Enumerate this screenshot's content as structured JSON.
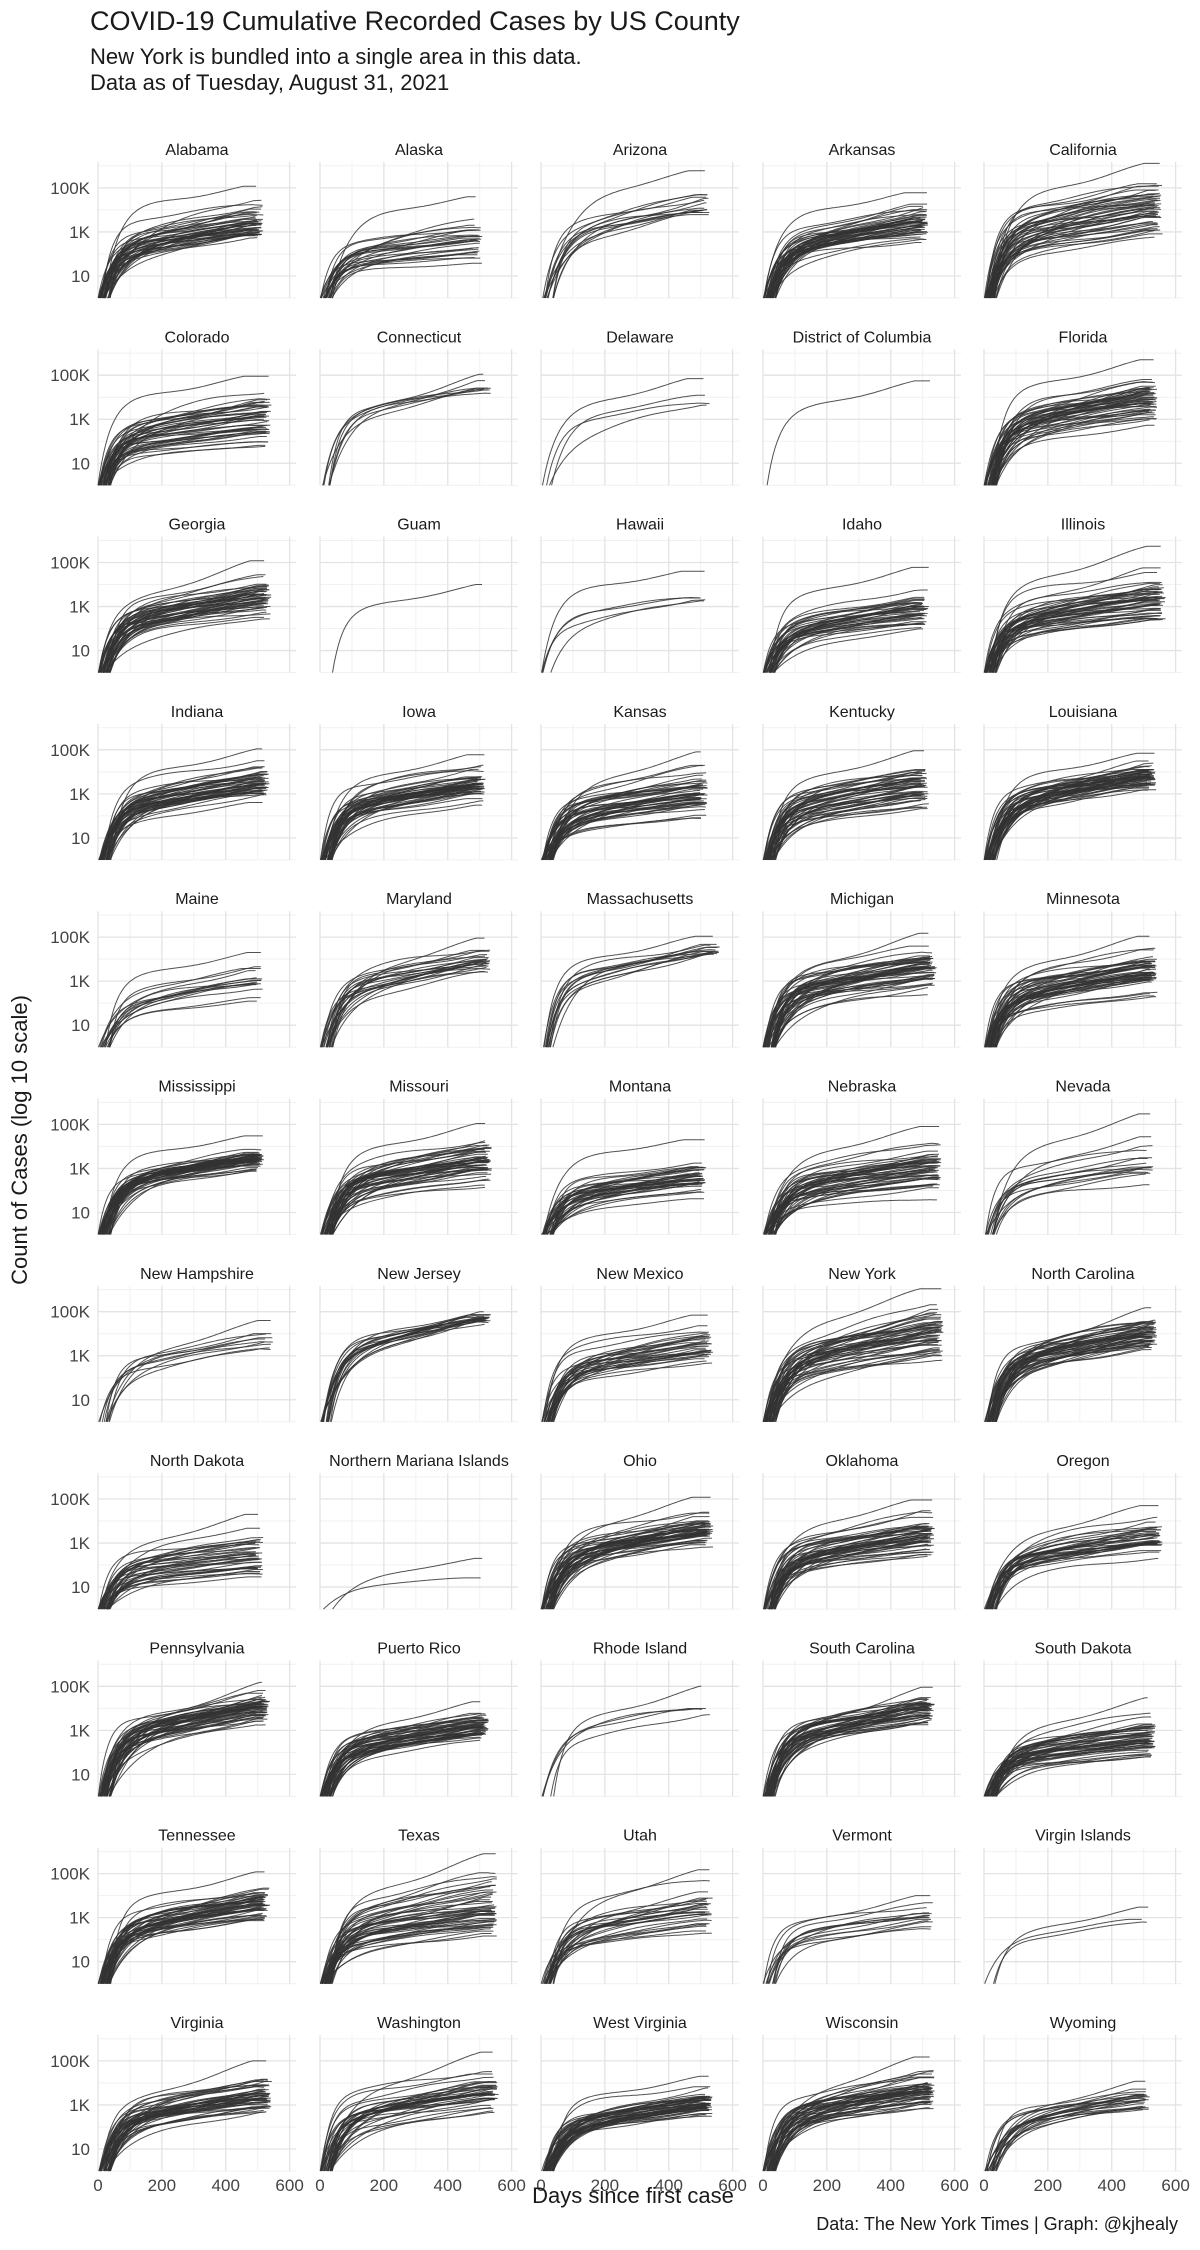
{
  "header": {
    "title": "COVID-19 Cumulative Recorded Cases by US County",
    "subtitle_line1": "New York is bundled into a single area in this data.",
    "subtitle_line2": "Data as of Tuesday, August 31, 2021"
  },
  "footer": {
    "caption": "Data: The New York Times | Graph: @kjhealy"
  },
  "chart_data": {
    "type": "line",
    "title": "COVID-19 Cumulative Recorded Cases by US County",
    "xlabel": "Days since first case",
    "ylabel": "Count of Cases (log 10 scale)",
    "xscale": "linear",
    "yscale": "log10",
    "xlim": [
      0,
      620
    ],
    "ylim": [
      1,
      1500000
    ],
    "xticks": [
      0,
      200,
      400,
      600
    ],
    "xtick_labels": [
      "0",
      "200",
      "400",
      "600"
    ],
    "yticks": [
      10,
      1000,
      100000
    ],
    "ytick_labels": [
      "10",
      "1K",
      "100K"
    ],
    "grid": true,
    "legend": "none",
    "line_color": "#333333",
    "facets": [
      {
        "name": "Alabama",
        "n": 48,
        "max_days": 520,
        "top": 120000,
        "mid": 3000
      },
      {
        "name": "Alaska",
        "n": 28,
        "max_days": 510,
        "top": 40000,
        "mid": 500
      },
      {
        "name": "Arizona",
        "n": 15,
        "max_days": 530,
        "top": 600000,
        "mid": 20000
      },
      {
        "name": "Arkansas",
        "n": 48,
        "max_days": 520,
        "top": 60000,
        "mid": 2500
      },
      {
        "name": "California",
        "n": 50,
        "max_days": 560,
        "top": 1300000,
        "mid": 10000
      },
      {
        "name": "Colorado",
        "n": 48,
        "max_days": 545,
        "top": 90000,
        "mid": 800
      },
      {
        "name": "Connecticut",
        "n": 8,
        "max_days": 540,
        "top": 110000,
        "mid": 20000
      },
      {
        "name": "Delaware",
        "n": 4,
        "max_days": 530,
        "top": 70000,
        "mid": 4000
      },
      {
        "name": "District of Columbia",
        "n": 1,
        "max_days": 540,
        "top": 55000,
        "mid": 55000
      },
      {
        "name": "Florida",
        "n": 50,
        "max_days": 545,
        "top": 500000,
        "mid": 8000
      },
      {
        "name": "Georgia",
        "n": 50,
        "max_days": 545,
        "top": 120000,
        "mid": 3000
      },
      {
        "name": "Guam",
        "n": 1,
        "max_days": 525,
        "top": 10000,
        "mid": 10000
      },
      {
        "name": "Hawaii",
        "n": 5,
        "max_days": 520,
        "top": 40000,
        "mid": 1500
      },
      {
        "name": "Idaho",
        "n": 40,
        "max_days": 520,
        "top": 60000,
        "mid": 1000
      },
      {
        "name": "Illinois",
        "n": 50,
        "max_days": 570,
        "top": 550000,
        "mid": 2500
      },
      {
        "name": "Indiana",
        "n": 50,
        "max_days": 540,
        "top": 110000,
        "mid": 4000
      },
      {
        "name": "Iowa",
        "n": 50,
        "max_days": 520,
        "top": 60000,
        "mid": 2500
      },
      {
        "name": "Kansas",
        "n": 50,
        "max_days": 525,
        "top": 80000,
        "mid": 1000
      },
      {
        "name": "Kentucky",
        "n": 50,
        "max_days": 520,
        "top": 90000,
        "mid": 2000
      },
      {
        "name": "Louisiana",
        "n": 50,
        "max_days": 540,
        "top": 70000,
        "mid": 5000
      },
      {
        "name": "Maine",
        "n": 16,
        "max_days": 520,
        "top": 20000,
        "mid": 1000
      },
      {
        "name": "Maryland",
        "n": 24,
        "max_days": 540,
        "top": 90000,
        "mid": 8000
      },
      {
        "name": "Massachusetts",
        "n": 14,
        "max_days": 560,
        "top": 110000,
        "mid": 25000
      },
      {
        "name": "Michigan",
        "n": 50,
        "max_days": 545,
        "top": 150000,
        "mid": 4000
      },
      {
        "name": "Minnesota",
        "n": 50,
        "max_days": 545,
        "top": 110000,
        "mid": 2500
      },
      {
        "name": "Mississippi",
        "n": 50,
        "max_days": 520,
        "top": 30000,
        "mid": 3000
      },
      {
        "name": "Missouri",
        "n": 50,
        "max_days": 540,
        "top": 110000,
        "mid": 2000
      },
      {
        "name": "Montana",
        "n": 40,
        "max_days": 520,
        "top": 20000,
        "mid": 500
      },
      {
        "name": "Nebraska",
        "n": 50,
        "max_days": 560,
        "top": 80000,
        "mid": 600
      },
      {
        "name": "Nevada",
        "n": 16,
        "max_days": 530,
        "top": 300000,
        "mid": 1000
      },
      {
        "name": "New Hampshire",
        "n": 10,
        "max_days": 550,
        "top": 40000,
        "mid": 6000
      },
      {
        "name": "New Jersey",
        "n": 21,
        "max_days": 540,
        "top": 100000,
        "mid": 50000
      },
      {
        "name": "New Mexico",
        "n": 33,
        "max_days": 540,
        "top": 70000,
        "mid": 2500
      },
      {
        "name": "New York",
        "n": 50,
        "max_days": 570,
        "top": 1100000,
        "mid": 10000
      },
      {
        "name": "North Carolina",
        "n": 50,
        "max_days": 545,
        "top": 150000,
        "mid": 8000
      },
      {
        "name": "North Dakota",
        "n": 40,
        "max_days": 520,
        "top": 20000,
        "mid": 300
      },
      {
        "name": "Northern Mariana Islands",
        "n": 2,
        "max_days": 510,
        "top": 200,
        "mid": 30
      },
      {
        "name": "Ohio",
        "n": 50,
        "max_days": 540,
        "top": 120000,
        "mid": 5000
      },
      {
        "name": "Oklahoma",
        "n": 50,
        "max_days": 540,
        "top": 90000,
        "mid": 2500
      },
      {
        "name": "Oregon",
        "n": 36,
        "max_days": 560,
        "top": 50000,
        "mid": 2000
      },
      {
        "name": "Pennsylvania",
        "n": 50,
        "max_days": 540,
        "top": 150000,
        "mid": 8000
      },
      {
        "name": "Puerto Rico",
        "n": 50,
        "max_days": 530,
        "top": 20000,
        "mid": 1500
      },
      {
        "name": "Rhode Island",
        "n": 5,
        "max_days": 530,
        "top": 100000,
        "mid": 10000
      },
      {
        "name": "South Carolina",
        "n": 46,
        "max_days": 540,
        "top": 90000,
        "mid": 8000
      },
      {
        "name": "South Dakota",
        "n": 50,
        "max_days": 540,
        "top": 30000,
        "mid": 500
      },
      {
        "name": "Tennessee",
        "n": 50,
        "max_days": 540,
        "top": 120000,
        "mid": 5000
      },
      {
        "name": "Texas",
        "n": 50,
        "max_days": 560,
        "top": 800000,
        "mid": 2500
      },
      {
        "name": "Utah",
        "n": 29,
        "max_days": 540,
        "top": 150000,
        "mid": 2000
      },
      {
        "name": "Vermont",
        "n": 14,
        "max_days": 540,
        "top": 10000,
        "mid": 1000
      },
      {
        "name": "Virgin Islands",
        "n": 3,
        "max_days": 520,
        "top": 3000,
        "mid": 1000
      },
      {
        "name": "Virginia",
        "n": 50,
        "max_days": 545,
        "top": 100000,
        "mid": 3000
      },
      {
        "name": "Washington",
        "n": 39,
        "max_days": 560,
        "top": 250000,
        "mid": 5000
      },
      {
        "name": "West Virginia",
        "n": 50,
        "max_days": 540,
        "top": 20000,
        "mid": 1500
      },
      {
        "name": "Wisconsin",
        "n": 50,
        "max_days": 540,
        "top": 150000,
        "mid": 5000
      },
      {
        "name": "Wyoming",
        "n": 23,
        "max_days": 525,
        "top": 12000,
        "mid": 1500
      }
    ]
  }
}
